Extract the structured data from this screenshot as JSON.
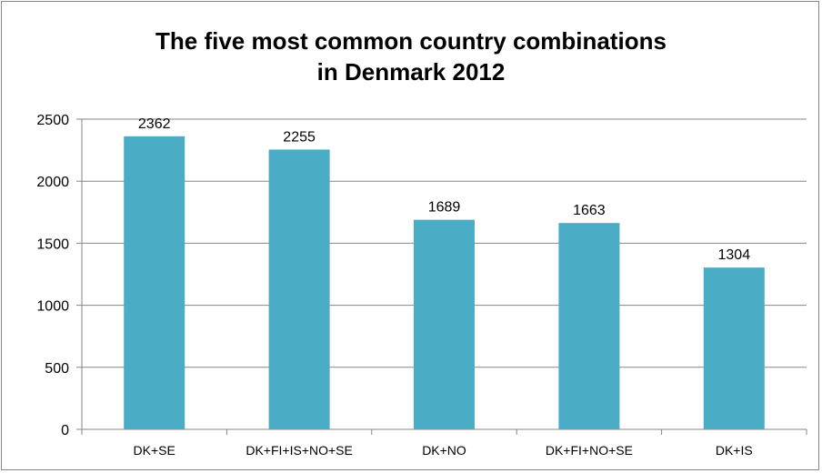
{
  "chart_data": {
    "type": "bar",
    "title_lines": [
      "The five most common country combinations",
      "in Denmark 2012"
    ],
    "categories": [
      "DK+SE",
      "DK+FI+IS+NO+SE",
      "DK+NO",
      "DK+FI+NO+SE",
      "DK+IS"
    ],
    "values": [
      2362,
      2255,
      1689,
      1663,
      1304
    ],
    "data_labels": [
      "2362",
      "2255",
      "1689",
      "1663",
      "1304"
    ],
    "ylim": [
      0,
      2500
    ],
    "yticks": [
      0,
      500,
      1000,
      1500,
      2000,
      2500
    ],
    "ytick_labels": [
      "0",
      "500",
      "1000",
      "1500",
      "2000",
      "2500"
    ],
    "grid": true,
    "legend": "none",
    "bar_color": "#4BACC6",
    "grid_color": "#868686"
  }
}
